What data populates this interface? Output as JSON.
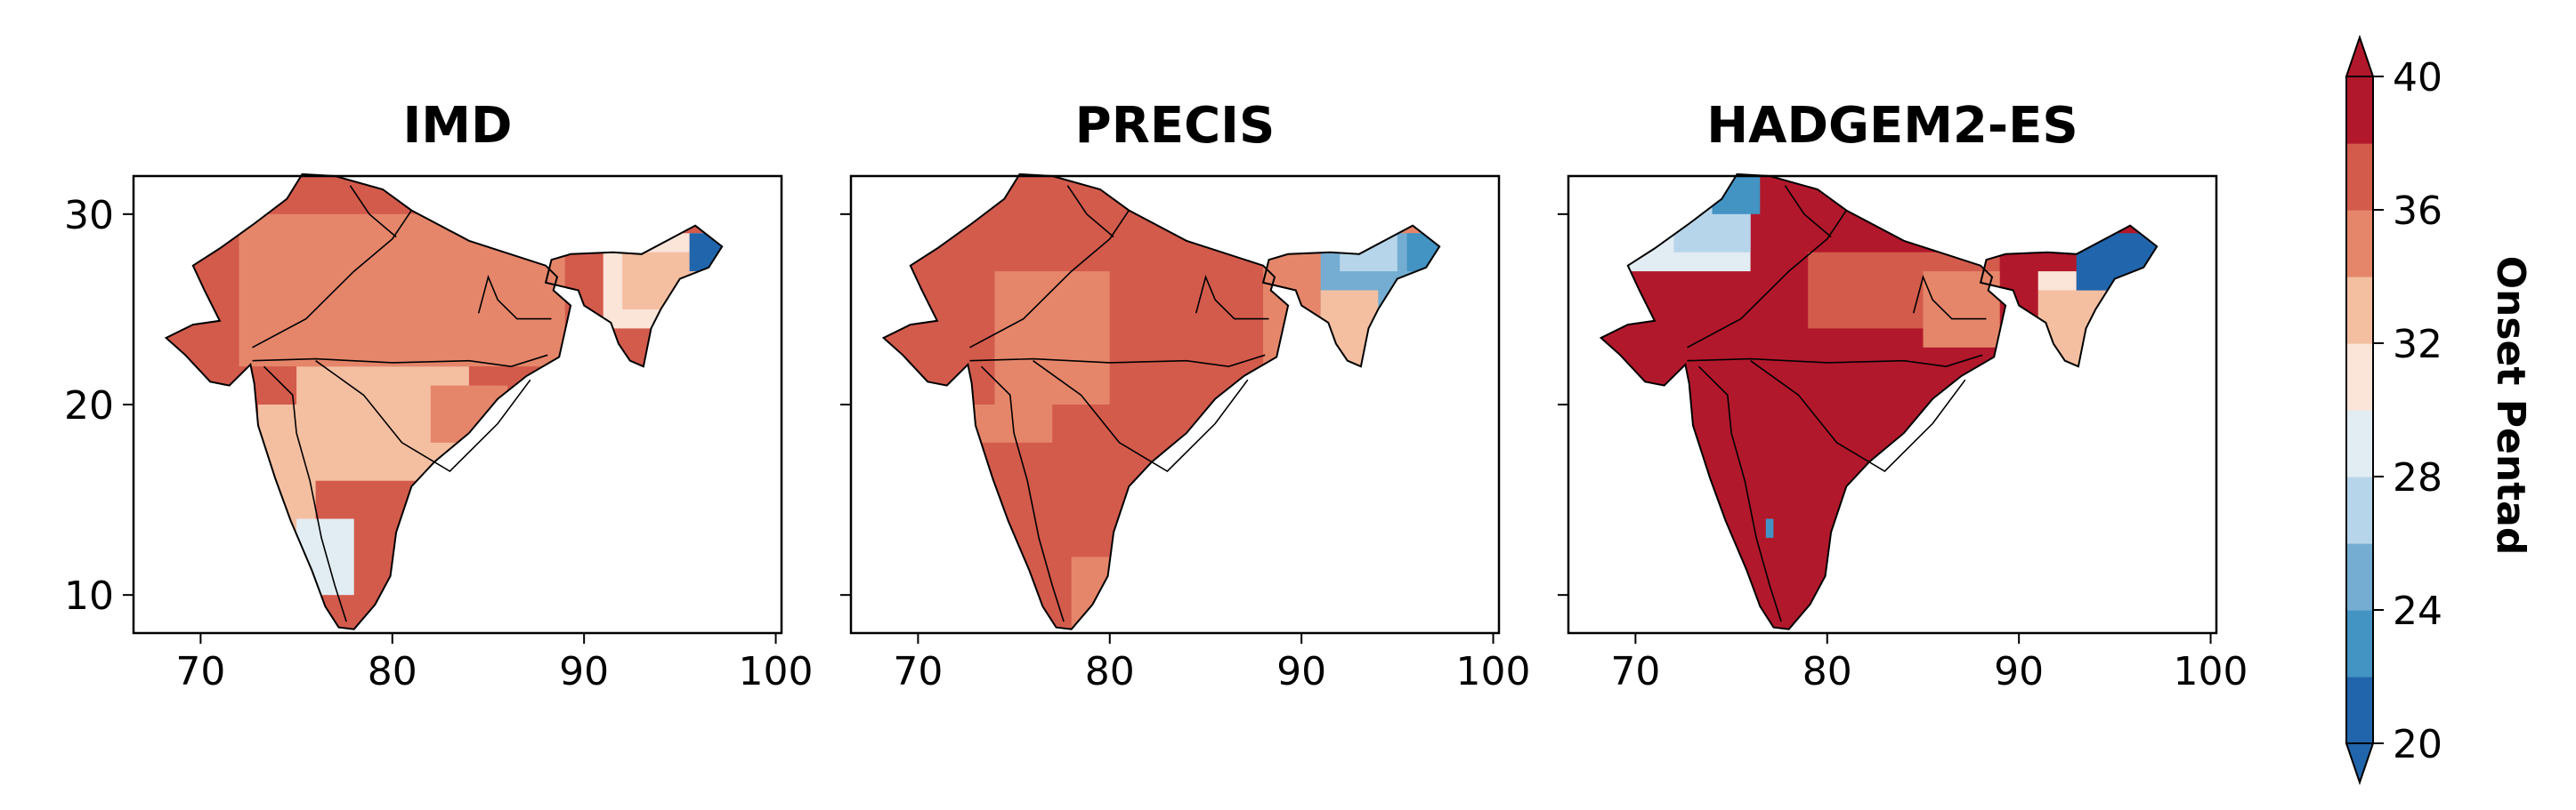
{
  "figure": {
    "panels": [
      {
        "title": "IMD",
        "show_y_ticklabels": true,
        "dominant_range": [
          36,
          40
        ],
        "blocks": [
          {
            "lon0": 72,
            "lon1": 89,
            "lat0": 22,
            "lat1": 30,
            "range": [
              34,
              36
            ]
          },
          {
            "lon0": 75,
            "lon1": 84,
            "lat0": 16,
            "lat1": 22,
            "range": [
              32,
              34
            ]
          },
          {
            "lon0": 73,
            "lon1": 76,
            "lat0": 12,
            "lat1": 20,
            "range": [
              32,
              34
            ]
          },
          {
            "lon0": 75,
            "lon1": 78,
            "lat0": 10,
            "lat1": 14,
            "range": [
              28,
              30
            ]
          },
          {
            "lon0": 91,
            "lon1": 97,
            "lat0": 24,
            "lat1": 29,
            "range": [
              30,
              32
            ]
          },
          {
            "lon0": 92,
            "lon1": 96,
            "lat0": 25,
            "lat1": 28,
            "range": [
              32,
              34
            ]
          },
          {
            "lon0": 95.5,
            "lon1": 97.5,
            "lat0": 27,
            "lat1": 29,
            "range": [
              20,
              22
            ]
          },
          {
            "lon0": 82,
            "lon1": 86,
            "lat0": 18,
            "lat1": 21,
            "range": [
              34,
              36
            ]
          }
        ]
      },
      {
        "title": "PRECIS",
        "show_y_ticklabels": false,
        "dominant_range": [
          34,
          36
        ],
        "blocks": [
          {
            "lon0": 68,
            "lon1": 88,
            "lat0": 20,
            "lat1": 33,
            "range": [
              36,
              40
            ]
          },
          {
            "lon0": 77,
            "lon1": 86,
            "lat0": 12,
            "lat1": 20,
            "range": [
              36,
              40
            ]
          },
          {
            "lon0": 72,
            "lon1": 78,
            "lat0": 8,
            "lat1": 18,
            "range": [
              36,
              40
            ]
          },
          {
            "lon0": 74,
            "lon1": 80,
            "lat0": 20,
            "lat1": 27,
            "range": [
              34,
              36
            ]
          },
          {
            "lon0": 91,
            "lon1": 97.5,
            "lat0": 24,
            "lat1": 29,
            "range": [
              24,
              26
            ]
          },
          {
            "lon0": 92,
            "lon1": 95,
            "lat0": 27,
            "lat1": 29,
            "range": [
              26,
              28
            ]
          },
          {
            "lon0": 91,
            "lon1": 94,
            "lat0": 22,
            "lat1": 26,
            "range": [
              32,
              34
            ]
          },
          {
            "lon0": 95.5,
            "lon1": 97.5,
            "lat0": 27,
            "lat1": 29,
            "range": [
              22,
              24
            ]
          }
        ]
      },
      {
        "title": "HADGEM2-ES",
        "show_y_ticklabels": false,
        "dominant_range": [
          38,
          40
        ],
        "blocks": [
          {
            "lon0": 68,
            "lon1": 76,
            "lat0": 27,
            "lat1": 33,
            "range": [
              28,
              30
            ]
          },
          {
            "lon0": 72,
            "lon1": 76,
            "lat0": 28,
            "lat1": 32,
            "range": [
              26,
              28
            ]
          },
          {
            "lon0": 74,
            "lon1": 76.5,
            "lat0": 30,
            "lat1": 33,
            "range": [
              22,
              24
            ]
          },
          {
            "lon0": 79,
            "lon1": 89,
            "lat0": 24,
            "lat1": 28,
            "range": [
              36,
              38
            ]
          },
          {
            "lon0": 85,
            "lon1": 89,
            "lat0": 23,
            "lat1": 27,
            "range": [
              34,
              36
            ]
          },
          {
            "lon0": 91,
            "lon1": 95,
            "lat0": 22,
            "lat1": 26,
            "range": [
              32,
              34
            ]
          },
          {
            "lon0": 91,
            "lon1": 93,
            "lat0": 26,
            "lat1": 27,
            "range": [
              30,
              32
            ]
          },
          {
            "lon0": 93,
            "lon1": 97.5,
            "lat0": 26,
            "lat1": 29,
            "range": [
              20,
              22
            ]
          },
          {
            "lon0": 76.8,
            "lon1": 77.2,
            "lat0": 13,
            "lat1": 14,
            "range": [
              22,
              24
            ]
          }
        ]
      }
    ],
    "axes": {
      "xlim": [
        66.5,
        100.3
      ],
      "ylim": [
        8.0,
        32.0
      ],
      "x_ticks": [
        70,
        80,
        90,
        100
      ],
      "x_tick_labels": [
        "70",
        "80",
        "90",
        "100"
      ],
      "y_ticks": [
        10,
        20,
        30
      ],
      "y_tick_labels": [
        "10",
        "20",
        "30"
      ]
    },
    "map_outline": {
      "coastline": [
        [
          77.0,
          32.0
        ],
        [
          79.5,
          31.3
        ],
        [
          81.0,
          30.2
        ],
        [
          84.0,
          28.6
        ],
        [
          88.0,
          27.3
        ],
        [
          88.6,
          26.7
        ],
        [
          88.4,
          26.0
        ],
        [
          89.3,
          25.2
        ],
        [
          88.7,
          22.5
        ],
        [
          87.0,
          21.5
        ],
        [
          85.5,
          20.3
        ],
        [
          84.0,
          18.5
        ],
        [
          82.2,
          17.0
        ],
        [
          81.0,
          15.7
        ],
        [
          80.2,
          13.3
        ],
        [
          79.9,
          11.0
        ],
        [
          79.1,
          9.5
        ],
        [
          78.0,
          8.2
        ],
        [
          77.2,
          8.3
        ],
        [
          76.5,
          9.4
        ],
        [
          75.8,
          11.3
        ],
        [
          74.7,
          13.9
        ],
        [
          73.9,
          16.1
        ],
        [
          73.0,
          18.9
        ],
        [
          72.8,
          21.1
        ],
        [
          72.6,
          22.1
        ],
        [
          71.5,
          21.0
        ],
        [
          70.5,
          21.2
        ],
        [
          69.2,
          22.6
        ],
        [
          68.2,
          23.5
        ],
        [
          69.6,
          24.2
        ],
        [
          71.0,
          24.4
        ],
        [
          70.2,
          26.0
        ],
        [
          69.6,
          27.3
        ],
        [
          71.0,
          28.2
        ],
        [
          72.8,
          29.5
        ],
        [
          74.5,
          30.8
        ],
        [
          75.3,
          32.1
        ]
      ],
      "northeast": [
        [
          88.0,
          26.4
        ],
        [
          88.3,
          27.6
        ],
        [
          89.3,
          27.9
        ],
        [
          91.5,
          28.0
        ],
        [
          93.0,
          27.9
        ],
        [
          95.8,
          29.4
        ],
        [
          97.2,
          28.3
        ],
        [
          96.5,
          27.2
        ],
        [
          95.0,
          26.6
        ],
        [
          94.0,
          25.0
        ],
        [
          93.5,
          24.0
        ],
        [
          93.1,
          22.0
        ],
        [
          92.4,
          22.3
        ],
        [
          91.8,
          23.2
        ],
        [
          91.4,
          24.3
        ],
        [
          90.0,
          25.2
        ],
        [
          89.7,
          26.0
        ]
      ],
      "region_lines": [
        [
          [
            72.7,
            22.3
          ],
          [
            76.0,
            22.4
          ],
          [
            80.0,
            22.2
          ],
          [
            84.0,
            22.3
          ],
          [
            86.2,
            22.0
          ],
          [
            88.1,
            22.6
          ]
        ],
        [
          [
            73.3,
            22.0
          ],
          [
            74.8,
            20.5
          ],
          [
            75.0,
            18.5
          ],
          [
            75.7,
            16.0
          ],
          [
            76.3,
            13.0
          ],
          [
            77.0,
            10.5
          ],
          [
            77.6,
            8.6
          ]
        ],
        [
          [
            76.0,
            22.3
          ],
          [
            78.5,
            20.5
          ],
          [
            80.5,
            18.0
          ],
          [
            83.0,
            16.5
          ],
          [
            85.5,
            19.0
          ],
          [
            87.2,
            21.3
          ]
        ],
        [
          [
            72.7,
            23.0
          ],
          [
            75.5,
            24.5
          ],
          [
            78.0,
            27.0
          ],
          [
            80.0,
            28.7
          ],
          [
            81.0,
            30.2
          ]
        ],
        [
          [
            84.5,
            24.8
          ],
          [
            85.0,
            26.7
          ],
          [
            85.5,
            25.5
          ],
          [
            86.5,
            24.5
          ],
          [
            88.3,
            24.5
          ]
        ],
        [
          [
            77.8,
            31.5
          ],
          [
            78.8,
            30.0
          ],
          [
            80.2,
            28.8
          ]
        ]
      ]
    },
    "colorbar": {
      "label": "Onset Pentad",
      "levels": [
        20,
        22,
        24,
        26,
        28,
        30,
        32,
        34,
        36,
        38,
        40
      ],
      "tick_values": [
        20,
        24,
        28,
        32,
        36,
        40
      ],
      "tick_labels": [
        "20",
        "24",
        "28",
        "32",
        "36",
        "40"
      ],
      "extend": "both",
      "colors": [
        "#2166ac",
        "#4393c3",
        "#74add1",
        "#b7d5ea",
        "#e2ecf3",
        "#fbe4d8",
        "#f4bfa1",
        "#e5866a",
        "#d35b4c",
        "#b2182b"
      ],
      "under_color": "#2166ac",
      "over_color": "#b2182b"
    }
  }
}
